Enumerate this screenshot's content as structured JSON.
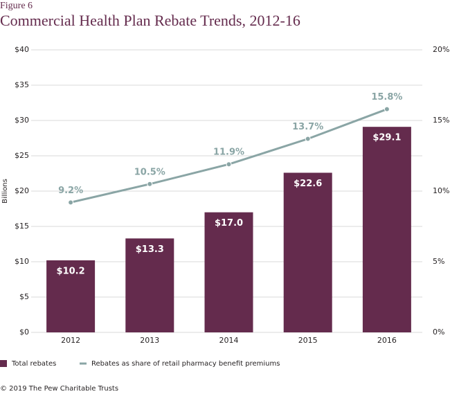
{
  "chart_data": {
    "type": "bar",
    "subtitle": "Figure 6",
    "title": "Commercial Health Plan Rebate Trends, 2012-16",
    "y_label": "Billions",
    "categories": [
      "2012",
      "2013",
      "2014",
      "2015",
      "2016"
    ],
    "series": [
      {
        "name": "Total rebates",
        "color": "#642b4d",
        "type": "bar",
        "values": [
          10.2,
          13.3,
          17.0,
          22.6,
          29.1
        ],
        "value_labels": [
          "$10.2",
          "$13.3",
          "$17.0",
          "$22.6",
          "$29.1"
        ]
      },
      {
        "name": "Rebates as share of retail pharmacy benefit premiums",
        "color": "#8aa5a5",
        "type": "line",
        "axis": "y2",
        "values": [
          9.2,
          10.5,
          11.9,
          13.7,
          15.8
        ],
        "value_labels": [
          "9.2%",
          "10.5%",
          "11.9%",
          "13.7%",
          "15.8%"
        ]
      }
    ],
    "ylim": [
      0,
      40
    ],
    "yticks": [
      {
        "value": 0,
        "label": "$0"
      },
      {
        "value": 5,
        "label": "$5"
      },
      {
        "value": 10,
        "label": "$10"
      },
      {
        "value": 15,
        "label": "$15"
      },
      {
        "value": 20,
        "label": "$20"
      },
      {
        "value": 25,
        "label": "$25"
      },
      {
        "value": 30,
        "label": "$30"
      },
      {
        "value": 35,
        "label": "$35"
      },
      {
        "value": 40,
        "label": "$40"
      }
    ],
    "y2lim": [
      0,
      20
    ],
    "y2ticks": [
      {
        "value": 0,
        "label": "0%"
      },
      {
        "value": 5,
        "label": "5%"
      },
      {
        "value": 10,
        "label": "10%"
      },
      {
        "value": 15,
        "label": "15%"
      },
      {
        "value": 20,
        "label": "20%"
      }
    ],
    "grid": true,
    "footer": "© 2019 The Pew Charitable Trusts"
  }
}
